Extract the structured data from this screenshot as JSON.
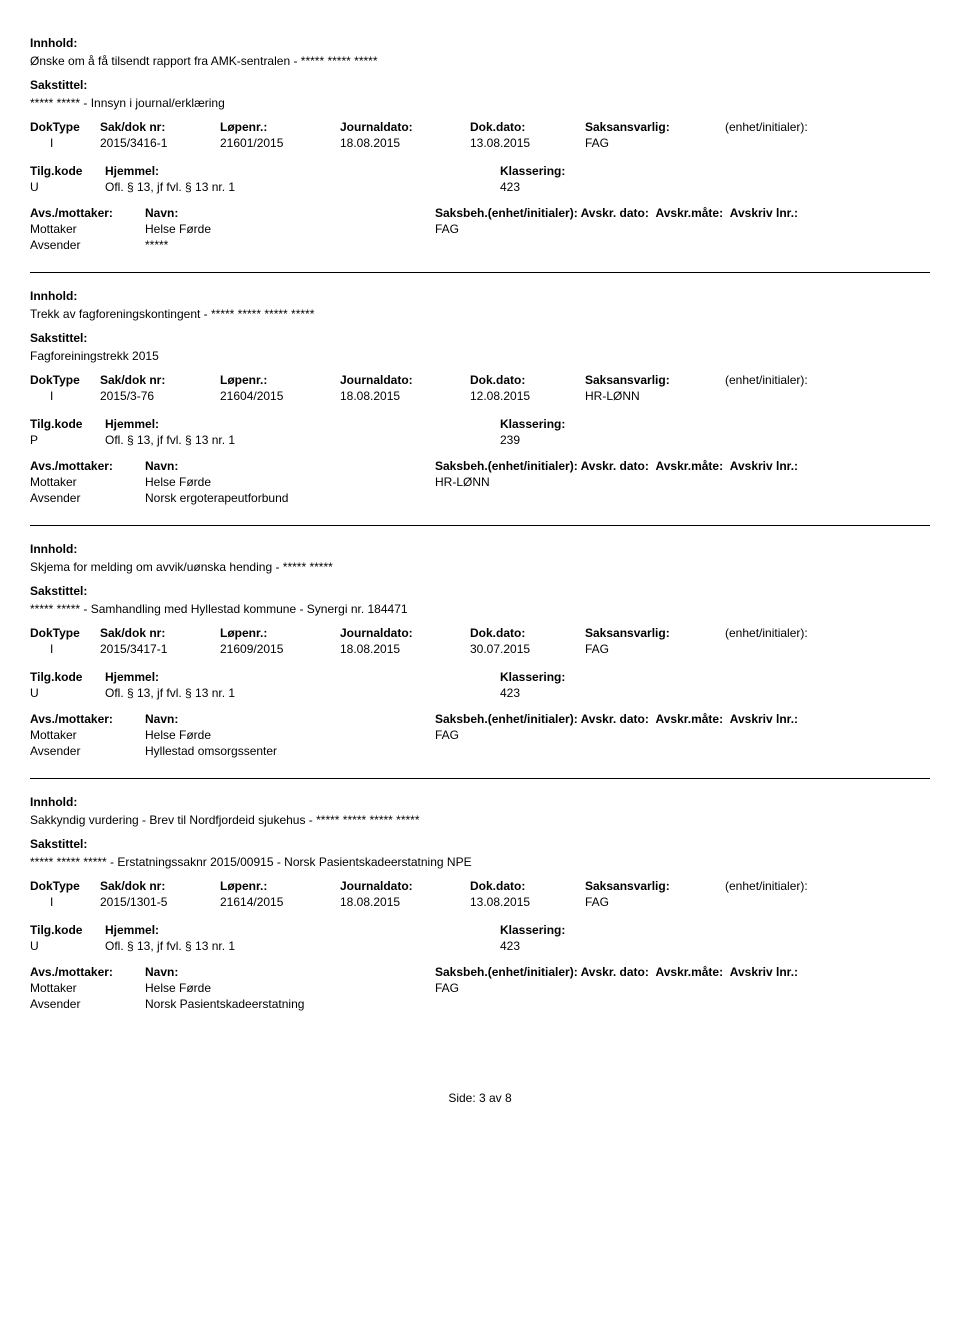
{
  "labels": {
    "innhold": "Innhold:",
    "sakstittel": "Sakstittel:",
    "doktype": "DokType",
    "saknr": "Sak/dok nr:",
    "lopenr": "Løpenr.:",
    "journaldato": "Journaldato:",
    "dokdato": "Dok.dato:",
    "saksansvarlig": "Saksansvarlig:",
    "enhet": "(enhet/initialer):",
    "tilgkode": "Tilg.kode",
    "hjemmel": "Hjemmel:",
    "klassering": "Klassering:",
    "avsmottaker": "Avs./mottaker:",
    "navn": "Navn:",
    "saksbeh": "Saksbeh.(enhet/initialer):",
    "avskrdato": "Avskr. dato:",
    "avskrmate": "Avskr.måte:",
    "avskrivlnr": "Avskriv lnr.:",
    "mottaker": "Mottaker",
    "avsender": "Avsender"
  },
  "records": [
    {
      "content": "Ønske om å få tilsendt rapport fra AMK-sentralen - ***** ***** *****",
      "case_title": "***** ***** - Innsyn i journal/erklæring",
      "doktype": "I",
      "saknr": "2015/3416-1",
      "lopenr": "21601/2015",
      "journaldato": "18.08.2015",
      "dokdato": "13.08.2015",
      "saksansvarlig": "FAG",
      "enhet_init": "",
      "tilgkode": "U",
      "hjemmel": "Ofl. § 13, jf fvl. § 13 nr. 1",
      "klassering": "423",
      "mottaker_name": "Helse Førde",
      "mottaker_unit": "FAG",
      "avsender_name": "*****"
    },
    {
      "content": "Trekk av fagforeningskontingent - ***** ***** ***** *****",
      "case_title": "Fagforeiningstrekk 2015",
      "doktype": "I",
      "saknr": "2015/3-76",
      "lopenr": "21604/2015",
      "journaldato": "18.08.2015",
      "dokdato": "12.08.2015",
      "saksansvarlig": "HR-LØNN",
      "enhet_init": "",
      "tilgkode": "P",
      "hjemmel": "Ofl. § 13, jf fvl. § 13 nr. 1",
      "klassering": "239",
      "mottaker_name": "Helse Førde",
      "mottaker_unit": "HR-LØNN",
      "avsender_name": "Norsk ergoterapeutforbund"
    },
    {
      "content": "Skjema for melding om avvik/uønska hending - ***** *****",
      "case_title": "***** ***** - Samhandling med Hyllestad kommune - Synergi nr. 184471",
      "doktype": "I",
      "saknr": "2015/3417-1",
      "lopenr": "21609/2015",
      "journaldato": "18.08.2015",
      "dokdato": "30.07.2015",
      "saksansvarlig": "FAG",
      "enhet_init": "",
      "tilgkode": "U",
      "hjemmel": "Ofl. § 13, jf fvl. § 13 nr. 1",
      "klassering": "423",
      "mottaker_name": "Helse Førde",
      "mottaker_unit": "FAG",
      "avsender_name": "Hyllestad omsorgssenter"
    },
    {
      "content": "Sakkyndig vurdering - Brev til Nordfjordeid sjukehus - ***** ***** ***** *****",
      "case_title": "***** ***** ***** - Erstatningssaknr 2015/00915 - Norsk Pasientskadeerstatning NPE",
      "doktype": "I",
      "saknr": "2015/1301-5",
      "lopenr": "21614/2015",
      "journaldato": "18.08.2015",
      "dokdato": "13.08.2015",
      "saksansvarlig": "FAG",
      "enhet_init": "",
      "tilgkode": "U",
      "hjemmel": "Ofl. § 13, jf fvl. § 13 nr. 1",
      "klassering": "423",
      "mottaker_name": "Helse Førde",
      "mottaker_unit": "FAG",
      "avsender_name": "Norsk Pasientskadeerstatning"
    }
  ],
  "footer": "Side: 3 av 8"
}
